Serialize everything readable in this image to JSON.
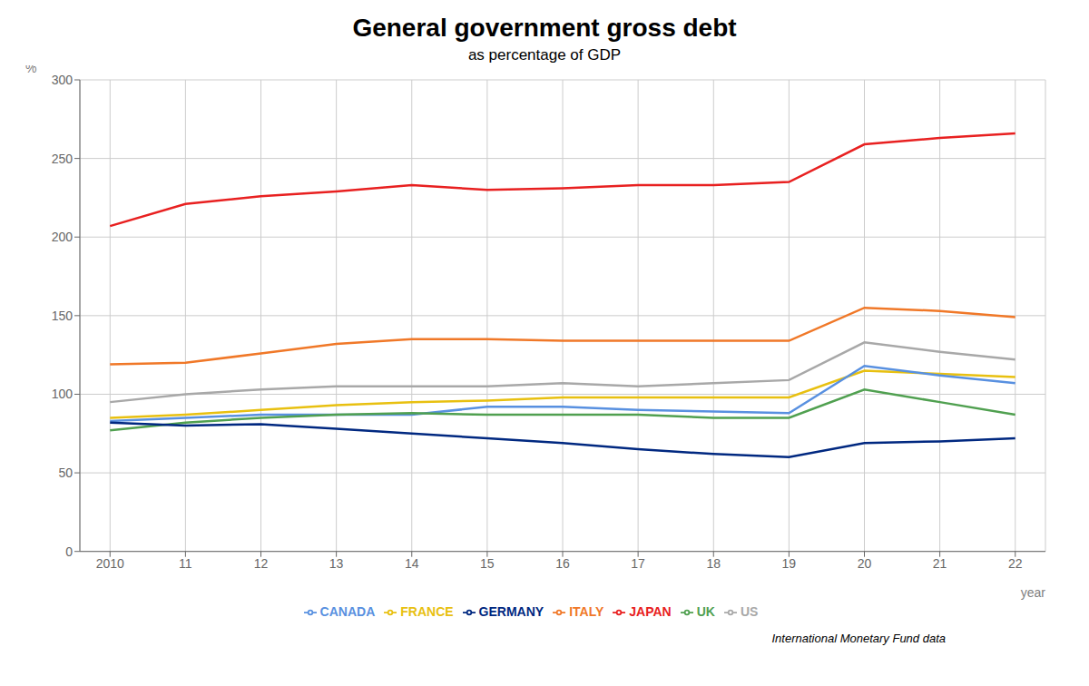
{
  "chart_data": {
    "type": "line",
    "title": "General government gross debt",
    "subtitle": "as percentage of GDP",
    "source": "International Monetary Fund data",
    "x_label": "year",
    "y_label": "%",
    "x": [
      2010,
      2011,
      2012,
      2013,
      2014,
      2015,
      2016,
      2017,
      2018,
      2019,
      2020,
      2021,
      2022
    ],
    "series": [
      {
        "name": "JAPAN",
        "color": "#e82020",
        "values": [
          207,
          221,
          226,
          229,
          233,
          230,
          231,
          233,
          233,
          235,
          259,
          263,
          266
        ]
      },
      {
        "name": "ITALY",
        "color": "#f07828",
        "values": [
          119,
          120,
          126,
          132,
          135,
          135,
          134,
          134,
          134,
          134,
          155,
          153,
          149
        ]
      },
      {
        "name": "US",
        "color": "#a8a8a8",
        "values": [
          95,
          100,
          103,
          105,
          105,
          105,
          107,
          105,
          107,
          109,
          133,
          127,
          122
        ]
      },
      {
        "name": "FRANCE",
        "color": "#e8c010",
        "values": [
          85,
          87,
          90,
          93,
          95,
          96,
          98,
          98,
          98,
          98,
          115,
          113,
          111
        ]
      },
      {
        "name": "CANADA",
        "color": "#5890e0",
        "values": [
          83,
          85,
          87,
          87,
          87,
          92,
          92,
          90,
          89,
          88,
          118,
          112,
          107
        ]
      },
      {
        "name": "UK",
        "color": "#50a050",
        "values": [
          77,
          82,
          85,
          87,
          88,
          87,
          87,
          87,
          85,
          85,
          103,
          95,
          87
        ]
      },
      {
        "name": "GERMANY",
        "color": "#002880",
        "values": [
          82,
          80,
          81,
          78,
          75,
          72,
          69,
          65,
          62,
          60,
          69,
          70,
          72
        ]
      }
    ],
    "xlim": [
      2009.6,
      2022.4
    ],
    "xticks": [
      2010,
      {
        "value": 2011,
        "label": "11"
      },
      {
        "value": 2012,
        "label": "12"
      },
      {
        "value": 2013,
        "label": "13"
      },
      {
        "value": 2014,
        "label": "14"
      },
      {
        "value": 2015,
        "label": "15"
      },
      {
        "value": 2016,
        "label": "16"
      },
      {
        "value": 2017,
        "label": "17"
      },
      {
        "value": 2018,
        "label": "18"
      },
      {
        "value": 2019,
        "label": "19"
      },
      {
        "value": 2020,
        "label": "20"
      },
      {
        "value": 2021,
        "label": "21"
      },
      {
        "value": 2022,
        "label": "22"
      }
    ],
    "ylim": [
      0,
      300
    ],
    "yticks": [
      0,
      50,
      100,
      150,
      200,
      250,
      300
    ],
    "grid": true,
    "legend": "bottom"
  }
}
